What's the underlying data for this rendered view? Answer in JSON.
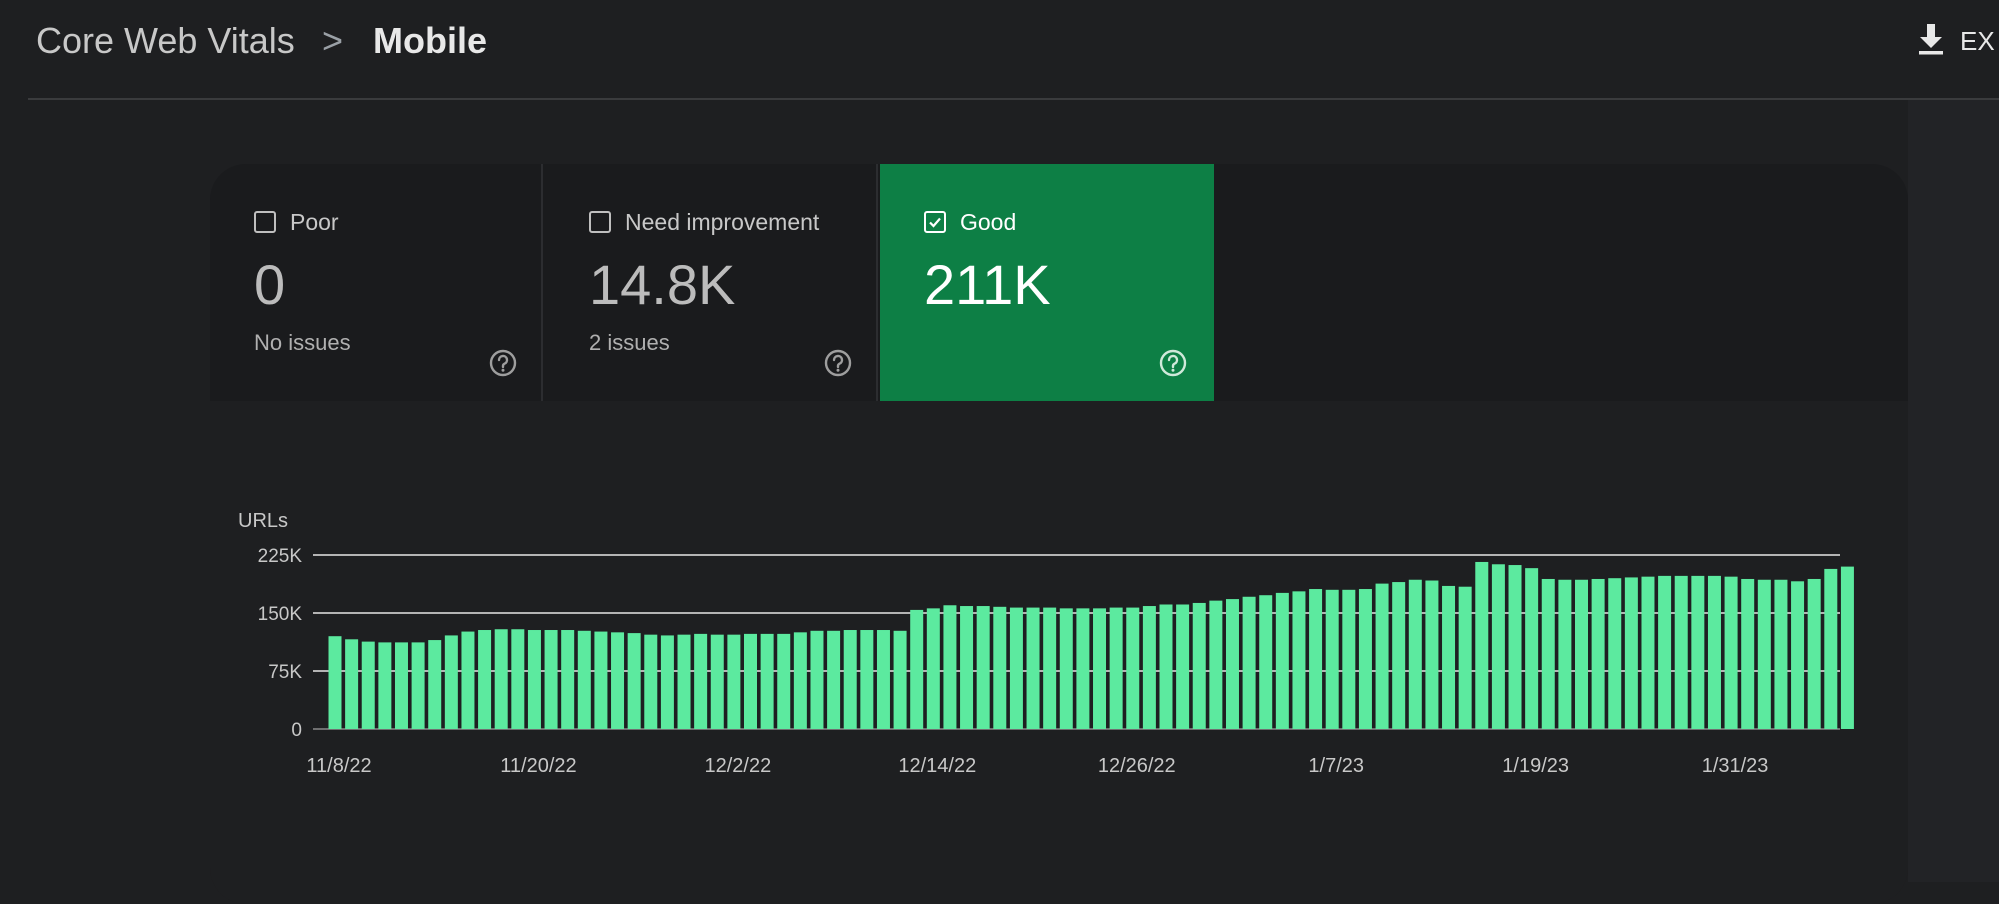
{
  "breadcrumb": {
    "root": "Core Web Vitals",
    "separator": ">",
    "current": "Mobile"
  },
  "export": {
    "label": "EX",
    "icon": "download-icon"
  },
  "metrics": [
    {
      "label": "Poor",
      "value": "0",
      "sub": "No issues",
      "checked": false
    },
    {
      "label": "Need improvement",
      "value": "14.8K",
      "sub": "2 issues",
      "checked": false
    },
    {
      "label": "Good",
      "value": "211K",
      "sub": "",
      "checked": true
    }
  ],
  "colors": {
    "good_tile": "#0d7f45",
    "bar": "#5cea9f",
    "background": "#1e1f21"
  },
  "chart_data": {
    "type": "bar",
    "ylabel": "URLs",
    "ylim": [
      0,
      225000
    ],
    "y_ticks": [
      "0",
      "75K",
      "150K",
      "225K"
    ],
    "y_tick_values": [
      0,
      75000,
      150000,
      225000
    ],
    "x_tick_labels": [
      "11/8/22",
      "11/20/22",
      "12/2/22",
      "12/14/22",
      "12/26/22",
      "1/7/23",
      "1/19/23",
      "1/31/23"
    ],
    "x_tick_indices": [
      0,
      12,
      24,
      36,
      48,
      60,
      72,
      84
    ],
    "grid": true,
    "series": [
      {
        "values": [
          120000,
          116000,
          113000,
          112000,
          112000,
          112000,
          115000,
          121000,
          126000,
          128000,
          129000,
          129000,
          128000,
          128000,
          128000,
          127000,
          126000,
          125000,
          124000,
          122000,
          121000,
          122000,
          123000,
          122000,
          122000,
          123000,
          123000,
          123000,
          125000,
          127000,
          127000,
          128000,
          128000,
          128000,
          127000,
          154000,
          156000,
          160000,
          159000,
          159000,
          158000,
          157000,
          157000,
          157000,
          156000,
          156000,
          156000,
          157000,
          157000,
          159000,
          161000,
          161000,
          163000,
          166000,
          168000,
          171000,
          173000,
          176000,
          178000,
          181000,
          180000,
          180000,
          181000,
          188000,
          190000,
          193000,
          192000,
          185000,
          184000,
          216000,
          213000,
          212000,
          208000,
          194000,
          193000,
          193000,
          194000,
          195000,
          196000,
          197000,
          198000,
          198000,
          198000,
          198000,
          197000,
          194000,
          193000,
          193000,
          191000,
          194000,
          207000,
          210000
        ]
      }
    ]
  }
}
